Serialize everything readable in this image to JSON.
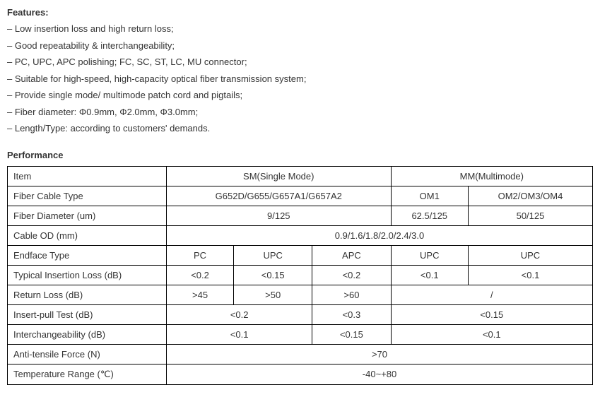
{
  "features": {
    "title": "Features:",
    "items": [
      "Low insertion loss and high return loss;",
      "Good repeatability & interchangeability;",
      "PC, UPC, APC polishing; FC, SC, ST, LC, MU connector;",
      "Suitable for high-speed, high-capacity optical fiber transmission system;",
      "Provide single mode/ multimode patch cord and pigtails;",
      "Fiber diameter: Φ0.9mm, Φ2.0mm, Φ3.0mm;",
      "Length/Type: according to customers' demands."
    ]
  },
  "performance": {
    "title": "Performance",
    "headers": {
      "item": "Item",
      "sm": "SM(Single Mode)",
      "mm": "MM(Multimode)"
    },
    "rows": {
      "fiber_cable_type": {
        "label": "Fiber Cable Type",
        "sm": "G652D/G655/G657A1/G657A2",
        "mm1": "OM1",
        "mm2": "OM2/OM3/OM4"
      },
      "fiber_diameter": {
        "label": "Fiber Diameter (um)",
        "sm": "9/125",
        "mm1": "62.5/125",
        "mm2": "50/125"
      },
      "cable_od": {
        "label": "Cable OD (mm)",
        "value": "0.9/1.6/1.8/2.0/2.4/3.0"
      },
      "endface_type": {
        "label": "Endface Type",
        "c1": "PC",
        "c2": "UPC",
        "c3": "APC",
        "c4": "UPC",
        "c5": "UPC"
      },
      "typical_insertion_loss": {
        "label": "Typical Insertion Loss (dB)",
        "c1": "<0.2",
        "c2": "<0.15",
        "c3": "<0.2",
        "c4": "<0.1",
        "c5": "<0.1"
      },
      "return_loss": {
        "label": "Return Loss (dB)",
        "c1": ">45",
        "c2": ">50",
        "c3": ">60",
        "c45": "/"
      },
      "insert_pull_test": {
        "label": "Insert-pull Test (dB)",
        "c12": "<0.2",
        "c3": "<0.3",
        "c45": "<0.15"
      },
      "interchangeability": {
        "label": "Interchangeability (dB)",
        "c12": "<0.1",
        "c3": "<0.15",
        "c45": "<0.1"
      },
      "anti_tensile_force": {
        "label": "Anti-tensile Force (N)",
        "value": ">70"
      },
      "temperature_range": {
        "label": "Temperature Range (℃)",
        "value": "-40~+80"
      }
    }
  }
}
